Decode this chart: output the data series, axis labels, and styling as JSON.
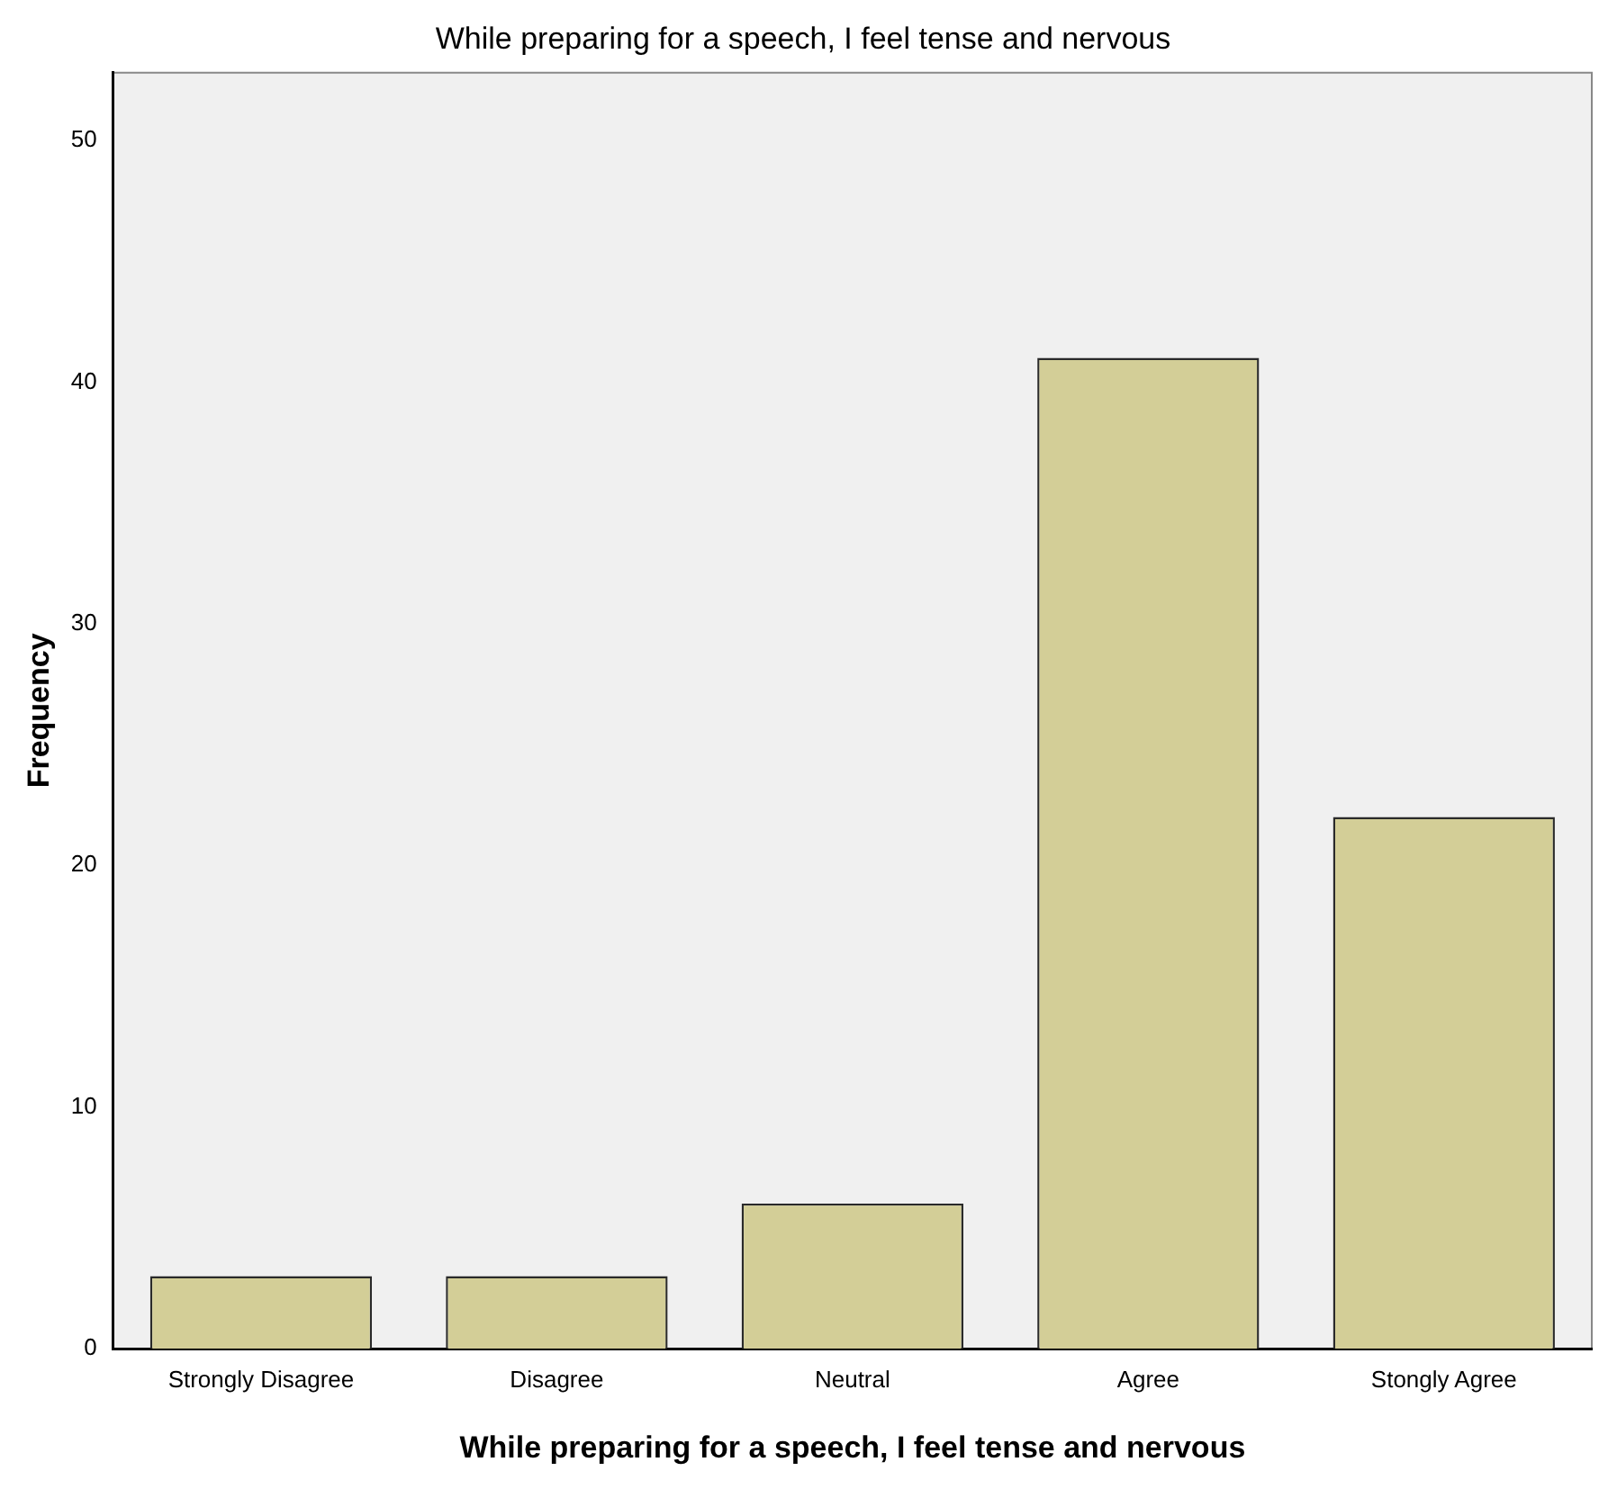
{
  "chart_data": {
    "type": "bar",
    "title": "While preparing for a speech, I feel tense and nervous",
    "xlabel": "While preparing for a speech, I feel tense and nervous",
    "ylabel": "Frequency",
    "categories": [
      "Strongly Disagree",
      "Disagree",
      "Neutral",
      "Agree",
      "Stongly Agree"
    ],
    "values": [
      3,
      3,
      6,
      41,
      22
    ],
    "color": "#d3ce97",
    "ylim": [
      0,
      52.8
    ],
    "yticks": [
      0,
      10,
      20,
      30,
      40,
      50
    ],
    "grid": false,
    "legend": false
  }
}
